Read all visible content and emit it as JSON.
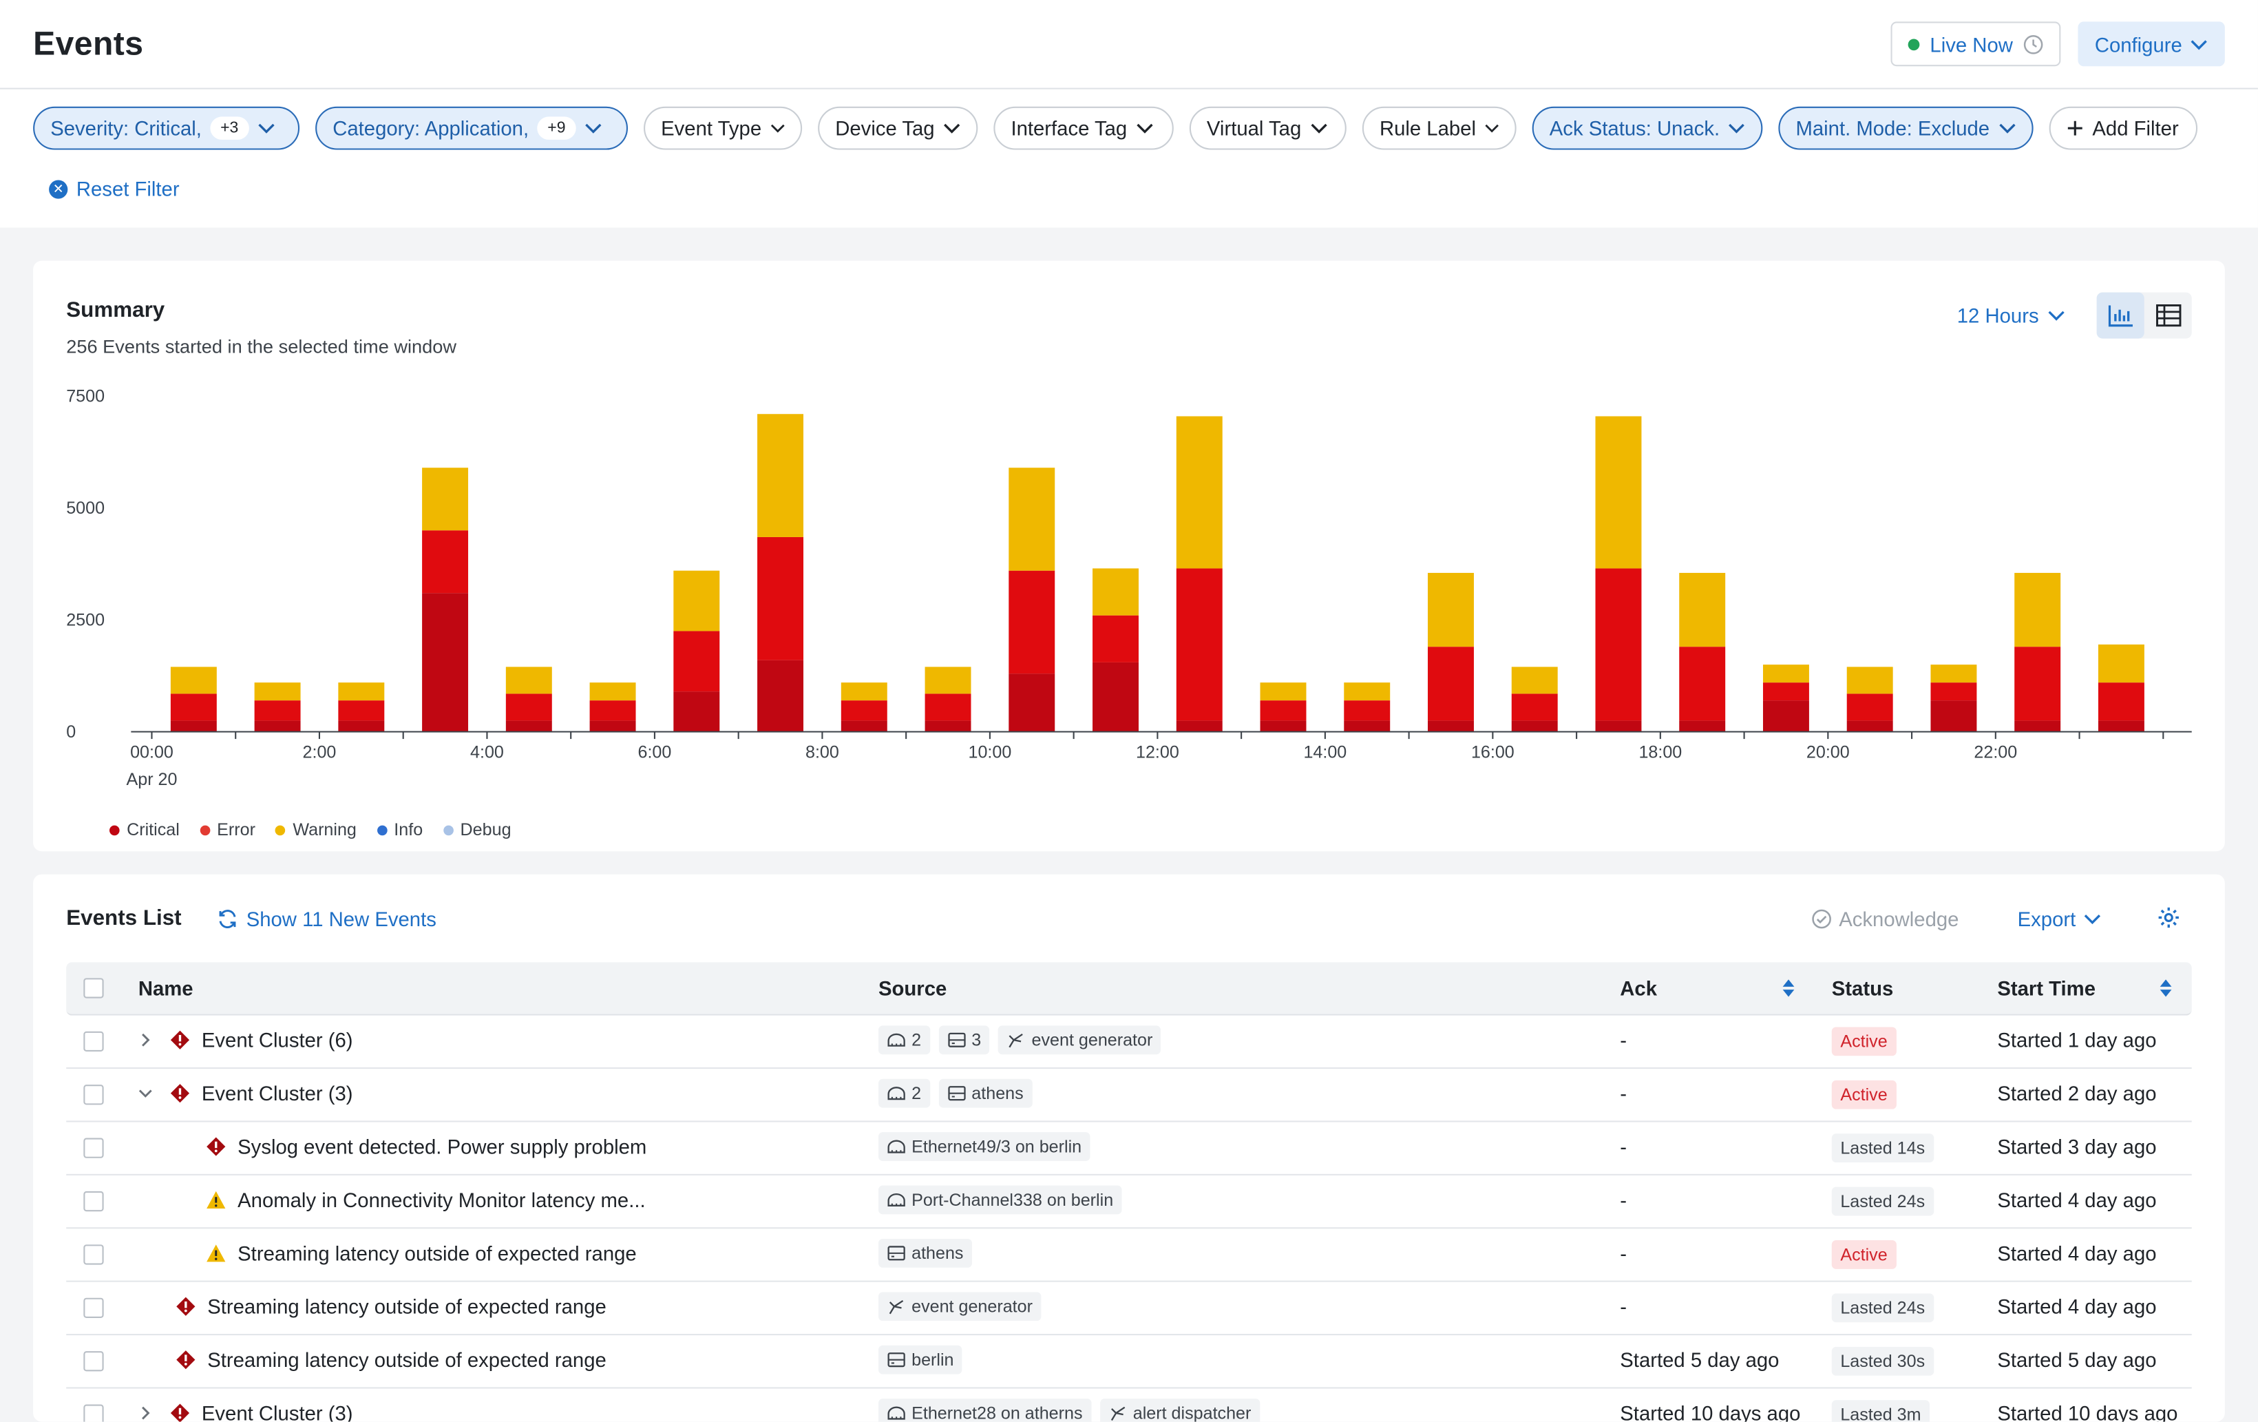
{
  "header": {
    "title": "Events",
    "live_label": "Live Now",
    "configure_label": "Configure"
  },
  "filters": {
    "chips": [
      {
        "label": "Severity: Critical,",
        "badge": "+3",
        "active": true
      },
      {
        "label": "Category: Application,",
        "badge": "+9",
        "active": true
      },
      {
        "label": "Event Type",
        "active": false
      },
      {
        "label": "Device Tag",
        "active": false
      },
      {
        "label": "Interface Tag",
        "active": false
      },
      {
        "label": "Virtual Tag",
        "active": false
      },
      {
        "label": "Rule Label",
        "active": false
      },
      {
        "label": "Ack Status: Unack.",
        "active": true
      },
      {
        "label": "Maint. Mode: Exclude",
        "active": true
      }
    ],
    "add_filter_label": "Add Filter",
    "reset_label": "Reset Filter"
  },
  "summary": {
    "title": "Summary",
    "subtitle": "256 Events started in the selected time window",
    "time_range": "12 Hours"
  },
  "chart_data": {
    "type": "bar",
    "stacked": true,
    "y_ticks": [
      "0",
      "2500",
      "5000",
      "7500"
    ],
    "ylim": [
      0,
      7500
    ],
    "x_tick_labels": [
      "00:00",
      "2:00",
      "4:00",
      "6:00",
      "8:00",
      "10:00",
      "12:00",
      "14:00",
      "16:00",
      "18:00",
      "20:00",
      "22:00"
    ],
    "x_sublabel": "Apr 20",
    "categories": [
      "00:00",
      "01:00",
      "02:00",
      "03:00",
      "04:00",
      "05:00",
      "06:00",
      "07:00",
      "08:00",
      "09:00",
      "10:00",
      "11:00",
      "12:00",
      "13:00",
      "14:00",
      "15:00",
      "16:00",
      "17:00",
      "18:00",
      "19:00",
      "20:00",
      "21:00",
      "22:00",
      "23:00"
    ],
    "series": [
      {
        "name": "Critical",
        "color": "#c00712",
        "values": [
          250,
          250,
          250,
          3100,
          250,
          250,
          900,
          1600,
          250,
          250,
          1300,
          1550,
          250,
          250,
          250,
          250,
          250,
          250,
          250,
          700,
          250,
          700,
          250,
          250
        ]
      },
      {
        "name": "Error",
        "color": "#e00b0f",
        "values": [
          600,
          450,
          450,
          1400,
          600,
          450,
          1350,
          2750,
          450,
          600,
          2300,
          1050,
          3400,
          450,
          450,
          1650,
          600,
          3400,
          1650,
          400,
          600,
          400,
          1650,
          850
        ]
      },
      {
        "name": "Warning",
        "color": "#efb800",
        "values": [
          600,
          400,
          400,
          1400,
          600,
          400,
          1350,
          2750,
          400,
          600,
          2300,
          1050,
          3400,
          400,
          400,
          1650,
          600,
          3400,
          1650,
          400,
          600,
          400,
          1650,
          850
        ]
      },
      {
        "name": "Info",
        "color": "#2f6fd0",
        "values": [
          0,
          0,
          0,
          0,
          0,
          0,
          0,
          0,
          0,
          0,
          0,
          0,
          0,
          0,
          0,
          0,
          0,
          0,
          0,
          0,
          0,
          0,
          0,
          0
        ]
      },
      {
        "name": "Debug",
        "color": "#a8c2e6",
        "values": [
          0,
          0,
          0,
          0,
          0,
          0,
          0,
          0,
          0,
          0,
          0,
          0,
          0,
          0,
          0,
          0,
          0,
          0,
          0,
          0,
          0,
          0,
          0,
          0
        ]
      }
    ]
  },
  "events": {
    "title": "Events List",
    "show_new_label": "Show 11 New Events",
    "acknowledge_label": "Acknowledge",
    "export_label": "Export",
    "columns": {
      "name": "Name",
      "source": "Source",
      "ack": "Ack",
      "status": "Status",
      "start": "Start Time"
    },
    "rows": [
      {
        "name": "Event Cluster (6)",
        "sources": [
          {
            "icon": "interface-icon",
            "text": "2"
          },
          {
            "icon": "device-icon",
            "text": "3"
          },
          {
            "icon": "generator-icon",
            "text": "event generator"
          }
        ],
        "ack": "-",
        "status": "Active",
        "start": "Started 1 day ago"
      },
      {
        "name": "Event Cluster (3)",
        "sources": [
          {
            "icon": "interface-icon",
            "text": "2"
          },
          {
            "icon": "device-icon",
            "text": "athens"
          }
        ],
        "ack": "-",
        "status": "Active",
        "start": "Started 2 day ago"
      },
      {
        "name": "Syslog event detected. Power supply problem",
        "sources": [
          {
            "icon": "interface-icon",
            "text": "Ethernet49/3 on berlin"
          }
        ],
        "ack": "-",
        "status": "Lasted 14s",
        "start": "Started 3 day ago"
      },
      {
        "name": "Anomaly in Connectivity Monitor latency me...",
        "sources": [
          {
            "icon": "interface-icon",
            "text": "Port-Channel338 on berlin"
          }
        ],
        "ack": "-",
        "status": "Lasted 24s",
        "start": "Started 4 day ago"
      },
      {
        "name": "Streaming latency outside of expected range",
        "sources": [
          {
            "icon": "device-icon",
            "text": "athens"
          }
        ],
        "ack": "-",
        "status": "Active",
        "start": "Started 4 day ago"
      },
      {
        "name": "Streaming latency outside of expected range",
        "sources": [
          {
            "icon": "generator-icon",
            "text": "event generator"
          }
        ],
        "ack": "-",
        "status": "Lasted 24s",
        "start": "Started 4 day ago"
      },
      {
        "name": "Streaming latency outside of expected range",
        "sources": [
          {
            "icon": "device-icon",
            "text": "berlin"
          }
        ],
        "ack": "Started 5 day ago",
        "status": "Lasted 30s",
        "start": "Started 5 day ago"
      },
      {
        "name": "Event Cluster (3)",
        "sources": [
          {
            "icon": "interface-icon",
            "text": "Ethernet28 on atherns"
          },
          {
            "icon": "generator-icon",
            "text": "alert dispatcher"
          }
        ],
        "ack": "Started 10 days ago",
        "status": "Lasted 3m",
        "start": "Started 10 days ago"
      }
    ]
  }
}
